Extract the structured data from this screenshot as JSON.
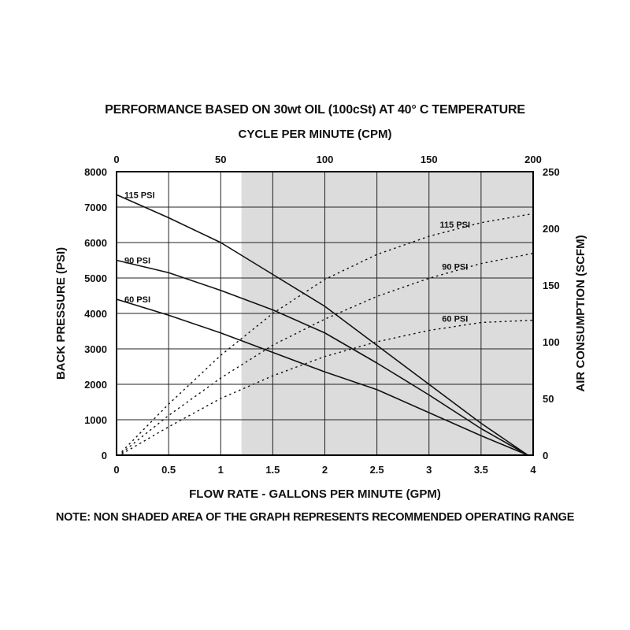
{
  "title": "PERFORMANCE BASED ON 30wt OIL (100cSt) AT 40° C TEMPERATURE",
  "note": "NOTE: NON SHADED AREA OF THE GRAPH REPRESENTS RECOMMENDED OPERATING RANGE",
  "colors": {
    "shade": "#dcdcdc",
    "line": "#111111",
    "grid": "#222222"
  },
  "chart_data": {
    "type": "line",
    "title": "PERFORMANCE BASED ON 30wt OIL (100cSt) AT 40° C TEMPERATURE",
    "xlabel": "FLOW RATE - GALLONS PER MINUTE (GPM)",
    "x2label": "CYCLE PER MINUTE (CPM)",
    "ylabel": "BACK PRESSURE  (PSI)",
    "y2label": "AIR CONSUMPTION  (SCFM)",
    "xlim": [
      0,
      4
    ],
    "ylim": [
      0,
      8000
    ],
    "x2lim": [
      0,
      200
    ],
    "y2lim": [
      0,
      250
    ],
    "x_ticks": [
      "0",
      "0.5",
      "1",
      "1.5",
      "2",
      "2.5",
      "3",
      "3.5",
      "4"
    ],
    "x2_ticks": [
      "0",
      "50",
      "100",
      "150",
      "200"
    ],
    "y_ticks": [
      "0",
      "1000",
      "2000",
      "3000",
      "4000",
      "5000",
      "6000",
      "7000",
      "8000"
    ],
    "y2_ticks": [
      "0",
      "50",
      "100",
      "150",
      "200",
      "250"
    ],
    "grid": true,
    "shaded_region": {
      "x_from": 1.2,
      "x_to": 4
    },
    "pressure_series": [
      {
        "name": "115 PSI",
        "x": [
          0,
          0.5,
          1,
          1.5,
          2,
          2.5,
          3,
          3.5,
          3.95
        ],
        "y": [
          7350,
          6700,
          6000,
          5100,
          4200,
          3100,
          2000,
          900,
          0
        ]
      },
      {
        "name": "90 PSI",
        "x": [
          0,
          0.5,
          1,
          1.5,
          2,
          2.5,
          3,
          3.5,
          3.95
        ],
        "y": [
          5500,
          5150,
          4650,
          4100,
          3450,
          2600,
          1700,
          750,
          0
        ]
      },
      {
        "name": "60 PSI",
        "x": [
          0,
          0.5,
          1,
          1.5,
          2,
          2.5,
          3,
          3.5,
          3.95
        ],
        "y": [
          4400,
          3950,
          3450,
          2900,
          2350,
          1850,
          1200,
          550,
          0
        ]
      }
    ],
    "air_series": [
      {
        "name": "115 PSI",
        "x": [
          0.05,
          0.5,
          1,
          1.5,
          2,
          2.5,
          3,
          3.5,
          4
        ],
        "y2": [
          3,
          45,
          88,
          125,
          155,
          177,
          193,
          205,
          213
        ]
      },
      {
        "name": "90 PSI",
        "x": [
          0.05,
          0.5,
          1,
          1.5,
          2,
          2.5,
          3,
          3.5,
          4
        ],
        "y2": [
          2,
          35,
          68,
          97,
          120,
          140,
          156,
          169,
          178
        ]
      },
      {
        "name": "60 PSI",
        "x": [
          0.05,
          0.5,
          1,
          1.5,
          2,
          2.5,
          3,
          3.5,
          4
        ],
        "y2": [
          1,
          25,
          50,
          70,
          87,
          100,
          110,
          117,
          119
        ]
      }
    ]
  }
}
